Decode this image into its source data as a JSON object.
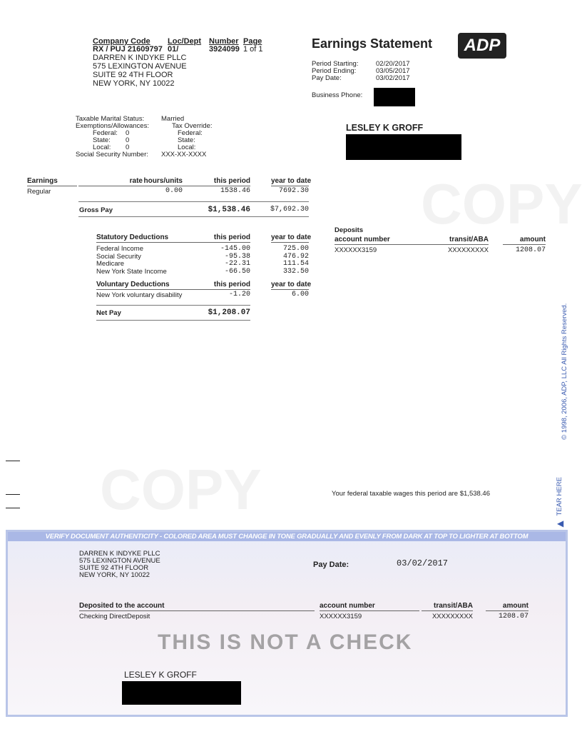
{
  "company": {
    "headers": [
      "Company Code",
      "Loc/Dept",
      "Number",
      "Page"
    ],
    "company_code": "RX / PUJ 21609797",
    "loc_dept": "01/",
    "number": "3924099",
    "page": "1 of 1",
    "name": "DARREN K INDYKE PLLC",
    "address1": "575 LEXINGTON AVENUE",
    "address2": "SUITE 92 4TH FLOOR",
    "address3": "NEW YORK, NY 10022"
  },
  "statement": {
    "title": "Earnings Statement",
    "logo": "ADP",
    "period_starting_label": "Period Starting:",
    "period_starting": "02/20/2017",
    "period_ending_label": "Period Ending:",
    "period_ending": "03/05/2017",
    "pay_date_label": "Pay Date:",
    "pay_date": "03/02/2017",
    "business_phone_label": "Business Phone:"
  },
  "employee": {
    "name": "LESLEY K GROFF",
    "marital_label": "Taxable Marital Status:",
    "marital": "Married",
    "exemptions_label": "Exemptions/Allowances:",
    "tax_override_label": "Tax Override:",
    "federal_label": "Federal:",
    "federal": "0",
    "state_label": "State:",
    "state": "0",
    "local_label": "Local:",
    "local": "0",
    "ssn_label": "Social Security Number:",
    "ssn": "XXX-XX-XXXX"
  },
  "earnings": {
    "headers": [
      "Earnings",
      "rate",
      "hours/units",
      "this period",
      "year to date"
    ],
    "rows": [
      {
        "label": "Regular",
        "hours": "0.00",
        "this_period": "1538.46",
        "ytd": "7692.30"
      }
    ],
    "gross_label": "Gross Pay",
    "gross_this": "$1,538.46",
    "gross_ytd": "$7,692.30"
  },
  "statutory": {
    "headers": [
      "Statutory Deductions",
      "this period",
      "year to date"
    ],
    "rows": [
      {
        "label": "Federal Income",
        "this_period": "-145.00",
        "ytd": "725.00"
      },
      {
        "label": "Social Security",
        "this_period": "-95.38",
        "ytd": "476.92"
      },
      {
        "label": "Medicare",
        "this_period": "-22.31",
        "ytd": "111.54"
      },
      {
        "label": "New York State Income",
        "this_period": "-66.50",
        "ytd": "332.50"
      }
    ]
  },
  "voluntary": {
    "headers": [
      "Voluntary Deductions",
      "this period",
      "year to date"
    ],
    "rows": [
      {
        "label": "New York voluntary disability",
        "this_period": "-1.20",
        "ytd": "6.00"
      }
    ]
  },
  "net": {
    "label": "Net Pay",
    "value": "$1,208.07"
  },
  "deposits": {
    "title": "Deposits",
    "headers": [
      "account number",
      "transit/ABA",
      "amount"
    ],
    "account": "XXXXXX3159",
    "transit": "XXXXXXXXX",
    "amount": "1208.07"
  },
  "taxable_note": "Your federal taxable wages this period are  $1,538.46",
  "copyright": "© 1998, 2006, ADP, LLC  All Rights Reserved.",
  "tear_here": "TEAR HERE",
  "check": {
    "verify": "VERIFY DOCUMENT AUTHENTICITY - COLORED AREA MUST CHANGE IN TONE GRADUALLY AND EVENLY FROM DARK AT TOP TO LIGHTER AT BOTTOM",
    "pay_date_label": "Pay Date:",
    "pay_date": "03/02/2017",
    "deposited_label": "Deposited to the account",
    "account_type": "Checking DirectDeposit",
    "headers": [
      "account number",
      "transit/ABA",
      "amount"
    ],
    "account": "XXXXXX3159",
    "transit": "XXXXXXXXX",
    "amount": "1208.07",
    "not_check": "THIS IS NOT A CHECK",
    "payee": "LESLEY K GROFF"
  }
}
